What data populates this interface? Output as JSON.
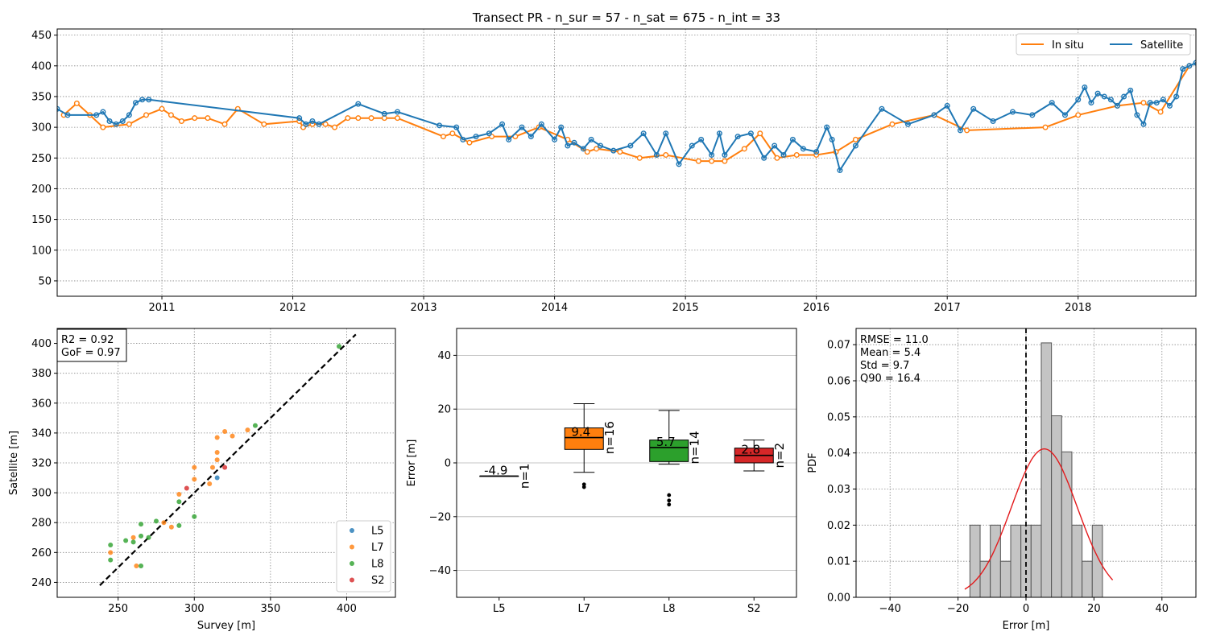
{
  "figure": {
    "title": "Transect PR - n_sur = 57 - n_sat = 675 - n_int = 33"
  },
  "colors": {
    "in_situ": "#ff7f0e",
    "satellite": "#1f77b4",
    "L5": "#1f77b4",
    "L7": "#ff7f0e",
    "L8": "#2ca02c",
    "S2": "#d62728",
    "hist_fill": "#c4c4c4",
    "pdf_line": "#e31a1c"
  },
  "chart_data": [
    {
      "id": "timeseries",
      "type": "line",
      "title": "Transect PR - n_sur = 57 - n_sat = 675 - n_int = 33",
      "xlim": [
        2010.2,
        2018.9
      ],
      "ylim": [
        25,
        460
      ],
      "x_ticks": [
        2011,
        2012,
        2013,
        2014,
        2015,
        2016,
        2017,
        2018
      ],
      "x_tick_labels": [
        "2011",
        "2012",
        "2013",
        "2014",
        "2015",
        "2016",
        "2017",
        "2018"
      ],
      "y_ticks": [
        50,
        100,
        150,
        200,
        250,
        300,
        350,
        400,
        450
      ],
      "y_tick_labels": [
        "50",
        "100",
        "150",
        "200",
        "250",
        "300",
        "350",
        "400",
        "450"
      ],
      "grid": true,
      "legend": {
        "location": "upper-right",
        "columns": 2,
        "entries": [
          "In situ",
          "Satellite"
        ]
      },
      "series": [
        {
          "name": "In situ",
          "x": [
            2010.25,
            2010.35,
            2010.45,
            2010.55,
            2010.75,
            2010.88,
            2011.0,
            2011.07,
            2011.15,
            2011.25,
            2011.35,
            2011.48,
            2011.58,
            2011.78,
            2012.05,
            2012.08,
            2012.15,
            2012.25,
            2012.32,
            2012.42,
            2012.5,
            2012.6,
            2012.7,
            2012.8,
            2013.15,
            2013.22,
            2013.35,
            2013.52,
            2013.7,
            2013.88,
            2014.1,
            2014.25,
            2014.32,
            2014.5,
            2014.65,
            2014.85,
            2015.1,
            2015.2,
            2015.3,
            2015.45,
            2015.57,
            2015.7,
            2015.85,
            2016.0,
            2016.15,
            2016.3,
            2016.58,
            2016.9,
            2017.15,
            2017.75,
            2018.0,
            2018.3,
            2018.5,
            2018.63,
            2018.85
          ],
          "values": [
            320,
            339,
            320,
            300,
            305,
            320,
            330,
            320,
            310,
            315,
            315,
            305,
            330,
            305,
            310,
            300,
            305,
            305,
            300,
            315,
            315,
            315,
            315,
            315,
            285,
            290,
            275,
            285,
            285,
            300,
            280,
            260,
            265,
            260,
            250,
            255,
            245,
            245,
            245,
            265,
            290,
            250,
            255,
            255,
            260,
            280,
            305,
            320,
            295,
            300,
            320,
            335,
            340,
            325,
            400
          ]
        },
        {
          "name": "Satellite",
          "x": [
            2010.2,
            2010.28,
            2010.5,
            2010.55,
            2010.6,
            2010.65,
            2010.7,
            2010.75,
            2010.8,
            2010.85,
            2010.9,
            2012.05,
            2012.1,
            2012.15,
            2012.2,
            2012.5,
            2012.7,
            2012.8,
            2013.12,
            2013.25,
            2013.3,
            2013.4,
            2013.5,
            2013.6,
            2013.65,
            2013.75,
            2013.82,
            2013.9,
            2014.0,
            2014.05,
            2014.1,
            2014.15,
            2014.22,
            2014.28,
            2014.35,
            2014.45,
            2014.58,
            2014.68,
            2014.78,
            2014.85,
            2014.95,
            2015.05,
            2015.12,
            2015.2,
            2015.26,
            2015.3,
            2015.4,
            2015.5,
            2015.6,
            2015.68,
            2015.75,
            2015.82,
            2015.9,
            2016.0,
            2016.08,
            2016.12,
            2016.18,
            2016.3,
            2016.5,
            2016.7,
            2016.9,
            2017.0,
            2017.1,
            2017.2,
            2017.35,
            2017.5,
            2017.65,
            2017.8,
            2017.9,
            2018.0,
            2018.05,
            2018.1,
            2018.15,
            2018.2,
            2018.25,
            2018.3,
            2018.35,
            2018.4,
            2018.45,
            2018.5,
            2018.55,
            2018.6,
            2018.65,
            2018.7,
            2018.75,
            2018.8,
            2018.85,
            2018.9
          ],
          "values": [
            330,
            320,
            320,
            325,
            310,
            305,
            310,
            320,
            340,
            345,
            345,
            315,
            305,
            310,
            305,
            338,
            322,
            325,
            303,
            300,
            280,
            285,
            290,
            305,
            280,
            300,
            285,
            305,
            280,
            300,
            270,
            275,
            265,
            280,
            270,
            262,
            270,
            290,
            255,
            290,
            240,
            270,
            280,
            255,
            290,
            255,
            285,
            290,
            250,
            270,
            255,
            280,
            265,
            260,
            300,
            280,
            230,
            270,
            330,
            305,
            320,
            335,
            295,
            330,
            310,
            325,
            320,
            340,
            320,
            345,
            365,
            340,
            355,
            350,
            345,
            335,
            350,
            360,
            320,
            305,
            340,
            340,
            345,
            335,
            350,
            395,
            400,
            405
          ]
        }
      ]
    },
    {
      "id": "scatter",
      "type": "scatter",
      "xlabel": "Survey [m]",
      "ylabel": "Satellite [m]",
      "xlim": [
        210,
        432
      ],
      "ylim": [
        230,
        410
      ],
      "x_ticks": [
        250,
        300,
        350,
        400
      ],
      "x_tick_labels": [
        "250",
        "300",
        "350",
        "400"
      ],
      "y_ticks": [
        240,
        260,
        280,
        300,
        320,
        340,
        360,
        380,
        400
      ],
      "y_tick_labels": [
        "240",
        "260",
        "280",
        "300",
        "320",
        "340",
        "360",
        "380",
        "400"
      ],
      "grid": true,
      "annotation": [
        "R2 = 0.92",
        "GoF = 0.97"
      ],
      "legend": {
        "location": "lower-right",
        "entries": [
          "L5",
          "L7",
          "L8",
          "S2"
        ]
      },
      "identity_line": [
        [
          238,
          238
        ],
        [
          406,
          406
        ]
      ],
      "series": [
        {
          "name": "L5",
          "points": [
            [
              315,
              310
            ]
          ]
        },
        {
          "name": "L7",
          "points": [
            [
              245,
              260
            ],
            [
              260,
              270
            ],
            [
              262,
              251
            ],
            [
              280,
              280
            ],
            [
              285,
              277
            ],
            [
              290,
              299
            ],
            [
              300,
              309
            ],
            [
              300,
              317
            ],
            [
              310,
              306
            ],
            [
              312,
              317
            ],
            [
              315,
              322
            ],
            [
              315,
              327
            ],
            [
              315,
              337
            ],
            [
              320,
              341
            ],
            [
              325,
              338
            ],
            [
              335,
              342
            ]
          ]
        },
        {
          "name": "L8",
          "points": [
            [
              245,
              255
            ],
            [
              245,
              265
            ],
            [
              255,
              268
            ],
            [
              260,
              267
            ],
            [
              265,
              251
            ],
            [
              265,
              271
            ],
            [
              265,
              279
            ],
            [
              270,
              270
            ],
            [
              275,
              281
            ],
            [
              290,
              278
            ],
            [
              290,
              294
            ],
            [
              300,
              284
            ],
            [
              340,
              345
            ],
            [
              395,
              398
            ]
          ]
        },
        {
          "name": "S2",
          "points": [
            [
              295,
              303
            ],
            [
              320,
              317
            ]
          ]
        }
      ]
    },
    {
      "id": "boxplot",
      "type": "box",
      "ylabel": "Error [m]",
      "ylim": [
        -50,
        50
      ],
      "y_ticks": [
        -40,
        -20,
        0,
        20,
        40
      ],
      "y_tick_labels": [
        "−40",
        "−20",
        "0",
        "20",
        "40"
      ],
      "grid": true,
      "categories": [
        "L5",
        "L7",
        "L8",
        "S2"
      ],
      "boxes": [
        {
          "name": "L5",
          "q1": -4.9,
          "median": -4.9,
          "q3": -4.9,
          "whisker_low": -4.9,
          "whisker_high": -4.9,
          "outliers": [],
          "mean_label": "-4.9",
          "n_label": "n=1"
        },
        {
          "name": "L7",
          "q1": 5.0,
          "median": 9.4,
          "q3": 13.0,
          "whisker_low": -3.5,
          "whisker_high": 22.0,
          "outliers": [
            -8,
            -9
          ],
          "mean_label": "9.4",
          "n_label": "n=16"
        },
        {
          "name": "L8",
          "q1": 0.5,
          "median": 5.7,
          "q3": 8.5,
          "whisker_low": -0.5,
          "whisker_high": 19.5,
          "outliers": [
            -12,
            -14,
            -15.5
          ],
          "mean_label": "5.7",
          "n_label": "n=14"
        },
        {
          "name": "S2",
          "q1": 0.0,
          "median": 2.8,
          "q3": 5.5,
          "whisker_low": -3.0,
          "whisker_high": 8.5,
          "outliers": [],
          "mean_label": "2.8",
          "n_label": "n=2"
        }
      ]
    },
    {
      "id": "histogram",
      "type": "bar",
      "xlabel": "Error [m]",
      "ylabel": "PDF",
      "xlim": [
        -50,
        50
      ],
      "ylim": [
        0,
        0.0745
      ],
      "x_ticks": [
        -40,
        -20,
        0,
        20,
        40
      ],
      "x_tick_labels": [
        "−40",
        "−20",
        "0",
        "20",
        "40"
      ],
      "y_ticks": [
        0,
        0.01,
        0.02,
        0.03,
        0.04,
        0.05,
        0.06,
        0.07
      ],
      "y_tick_labels": [
        "0.00",
        "0.01",
        "0.02",
        "0.03",
        "0.04",
        "0.05",
        "0.06",
        "0.07"
      ],
      "grid": true,
      "annotation": [
        "RMSE = 11.0",
        "Mean = 5.4",
        "Std = 9.7",
        "Q90 = 16.4"
      ],
      "bin_edges": [
        -16.5,
        -13.5,
        -10.5,
        -7.5,
        -4.5,
        -1.5,
        1.5,
        4.5,
        7.5,
        10.5,
        13.5,
        16.5,
        19.5,
        22.5
      ],
      "values": [
        0.02,
        0.01,
        0.02,
        0.01,
        0.02,
        0.02,
        0.02,
        0.0705,
        0.0503,
        0.0403,
        0.02,
        0.01,
        0.02
      ],
      "zero_line": 0,
      "normal_fit": {
        "mean": 5.4,
        "std": 9.7,
        "x_range": [
          -18,
          25.5
        ]
      }
    }
  ]
}
